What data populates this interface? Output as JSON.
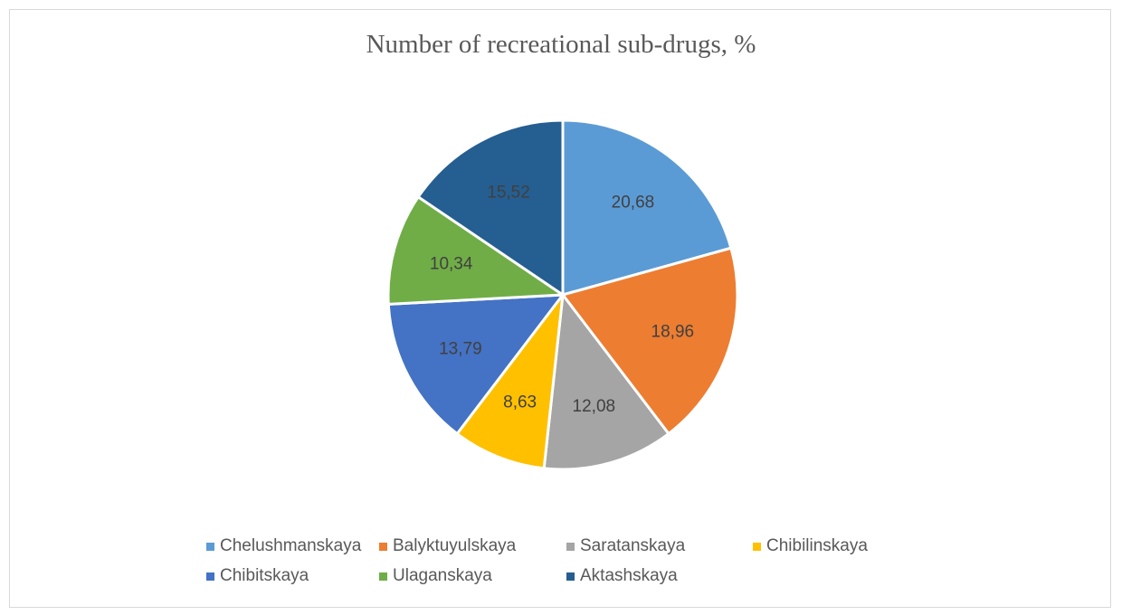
{
  "chart_data": {
    "type": "pie",
    "title": "Number of recreational sub-drugs, %",
    "categories": [
      "Chelushmanskaya",
      "Balyktuyulskaya",
      "Saratanskaya",
      "Chibilinskaya",
      "Chibitskaya",
      "Ulaganskaya",
      "Aktashskaya"
    ],
    "values": [
      20.68,
      18.96,
      12.08,
      8.63,
      13.79,
      10.34,
      15.52
    ],
    "value_labels": [
      "20,68",
      "18,96",
      "12,08",
      "8,63",
      "13,79",
      "10,34",
      "15,52"
    ],
    "colors": [
      "#5B9BD5",
      "#ED7D31",
      "#A5A5A5",
      "#FFC000",
      "#4472C4",
      "#70AD47",
      "#255E91"
    ],
    "legend_position": "bottom",
    "start_angle_deg": 0,
    "direction": "clockwise"
  }
}
